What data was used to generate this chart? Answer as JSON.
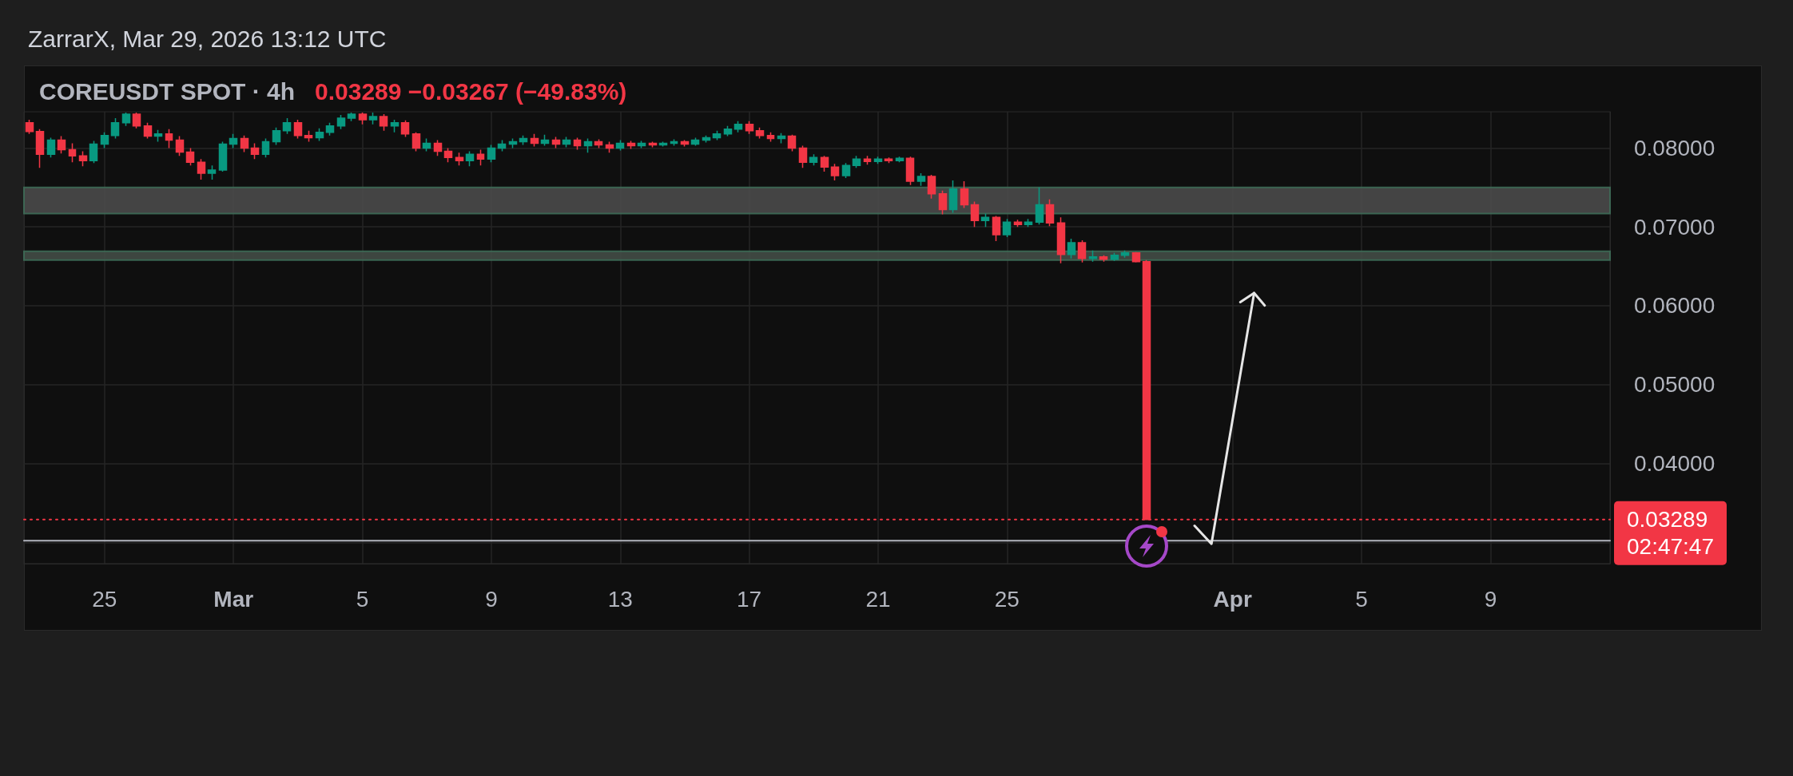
{
  "chart_data": {
    "type": "candlestick",
    "title": "COREUSDT SPOT · 4h",
    "subtitle": "0.03289 −0.03267 (−49.83%)",
    "annotations": [
      "ZarrarX, Mar 29, 2026 13:12 UTC"
    ],
    "x": [
      "2026-02-22T16:00",
      "2026-02-23T00:00",
      "2026-02-23T08:00",
      "2026-02-23T16:00",
      "2026-02-24T00:00",
      "2026-02-24T08:00",
      "2026-02-24T16:00",
      "2026-02-25T00:00",
      "2026-02-25T08:00",
      "2026-02-25T16:00",
      "2026-02-26T00:00",
      "2026-02-26T08:00",
      "2026-02-26T16:00",
      "2026-02-27T00:00",
      "2026-02-27T08:00",
      "2026-02-27T16:00",
      "2026-02-28T00:00",
      "2026-02-28T08:00",
      "2026-02-28T16:00",
      "2026-03-01T00:00",
      "2026-03-01T08:00",
      "2026-03-01T16:00",
      "2026-03-02T00:00",
      "2026-03-02T08:00",
      "2026-03-02T16:00",
      "2026-03-03T00:00",
      "2026-03-03T08:00",
      "2026-03-03T16:00",
      "2026-03-04T00:00",
      "2026-03-04T08:00",
      "2026-03-04T16:00",
      "2026-03-05T00:00",
      "2026-03-05T08:00",
      "2026-03-05T16:00",
      "2026-03-06T00:00",
      "2026-03-06T08:00",
      "2026-03-06T16:00",
      "2026-03-07T00:00",
      "2026-03-07T08:00",
      "2026-03-07T16:00",
      "2026-03-08T00:00",
      "2026-03-08T08:00",
      "2026-03-08T16:00",
      "2026-03-09T00:00",
      "2026-03-09T08:00",
      "2026-03-09T16:00",
      "2026-03-10T00:00",
      "2026-03-10T08:00",
      "2026-03-10T16:00",
      "2026-03-11T00:00",
      "2026-03-11T08:00",
      "2026-03-11T16:00",
      "2026-03-12T00:00",
      "2026-03-12T08:00",
      "2026-03-12T16:00",
      "2026-03-13T00:00",
      "2026-03-13T08:00",
      "2026-03-13T16:00",
      "2026-03-14T00:00",
      "2026-03-14T08:00",
      "2026-03-14T16:00",
      "2026-03-15T00:00",
      "2026-03-15T08:00",
      "2026-03-15T16:00",
      "2026-03-16T00:00",
      "2026-03-16T08:00",
      "2026-03-16T16:00",
      "2026-03-17T00:00",
      "2026-03-17T08:00",
      "2026-03-17T16:00",
      "2026-03-18T00:00",
      "2026-03-18T08:00",
      "2026-03-18T16:00",
      "2026-03-19T00:00",
      "2026-03-19T08:00",
      "2026-03-19T16:00",
      "2026-03-20T00:00",
      "2026-03-20T08:00",
      "2026-03-20T16:00",
      "2026-03-21T00:00",
      "2026-03-21T08:00",
      "2026-03-21T16:00",
      "2026-03-22T00:00",
      "2026-03-22T08:00",
      "2026-03-22T16:00",
      "2026-03-23T00:00",
      "2026-03-23T08:00",
      "2026-03-23T16:00",
      "2026-03-24T00:00",
      "2026-03-24T08:00",
      "2026-03-24T16:00",
      "2026-03-25T00:00",
      "2026-03-25T08:00",
      "2026-03-25T16:00",
      "2026-03-26T00:00",
      "2026-03-26T08:00",
      "2026-03-26T16:00",
      "2026-03-27T00:00",
      "2026-03-27T08:00",
      "2026-03-27T16:00",
      "2026-03-28T00:00",
      "2026-03-28T08:00",
      "2026-03-28T16:00",
      "2026-03-29T00:00",
      "2026-03-29T08:00"
    ],
    "ohlc": [
      [
        0.0832,
        0.0836,
        0.0818,
        0.0821
      ],
      [
        0.0821,
        0.0824,
        0.0775,
        0.0792
      ],
      [
        0.0792,
        0.0813,
        0.0788,
        0.081
      ],
      [
        0.081,
        0.0815,
        0.0793,
        0.0798
      ],
      [
        0.0798,
        0.0806,
        0.0782,
        0.079
      ],
      [
        0.079,
        0.0796,
        0.0777,
        0.0784
      ],
      [
        0.0784,
        0.0809,
        0.0781,
        0.0805
      ],
      [
        0.0805,
        0.082,
        0.08,
        0.0816
      ],
      [
        0.0816,
        0.0838,
        0.0812,
        0.0832
      ],
      [
        0.0832,
        0.0845,
        0.0828,
        0.0843
      ],
      [
        0.0843,
        0.0845,
        0.0825,
        0.0828
      ],
      [
        0.0828,
        0.0832,
        0.0812,
        0.0815
      ],
      [
        0.0815,
        0.0823,
        0.0808,
        0.0818
      ],
      [
        0.0818,
        0.0824,
        0.08,
        0.081
      ],
      [
        0.081,
        0.0815,
        0.079,
        0.0795
      ],
      [
        0.0795,
        0.08,
        0.0778,
        0.0782
      ],
      [
        0.0782,
        0.0786,
        0.076,
        0.0768
      ],
      [
        0.0768,
        0.0778,
        0.076,
        0.0772
      ],
      [
        0.0772,
        0.0808,
        0.077,
        0.0805
      ],
      [
        0.0805,
        0.0818,
        0.08,
        0.0812
      ],
      [
        0.0812,
        0.0816,
        0.0795,
        0.08
      ],
      [
        0.08,
        0.0806,
        0.0786,
        0.0792
      ],
      [
        0.0792,
        0.0812,
        0.0788,
        0.0808
      ],
      [
        0.0808,
        0.0826,
        0.0804,
        0.0822
      ],
      [
        0.0822,
        0.0838,
        0.0818,
        0.0832
      ],
      [
        0.0832,
        0.0836,
        0.0812,
        0.0816
      ],
      [
        0.0816,
        0.0822,
        0.0808,
        0.0813
      ],
      [
        0.0813,
        0.0825,
        0.0809,
        0.082
      ],
      [
        0.082,
        0.0832,
        0.0816,
        0.0828
      ],
      [
        0.0828,
        0.0842,
        0.0824,
        0.0838
      ],
      [
        0.0838,
        0.0845,
        0.0834,
        0.0843
      ],
      [
        0.0843,
        0.0845,
        0.083,
        0.0836
      ],
      [
        0.0836,
        0.0845,
        0.083,
        0.084
      ],
      [
        0.084,
        0.0843,
        0.0822,
        0.0828
      ],
      [
        0.0828,
        0.0836,
        0.082,
        0.0832
      ],
      [
        0.0832,
        0.0835,
        0.0814,
        0.0818
      ],
      [
        0.0818,
        0.082,
        0.0796,
        0.08
      ],
      [
        0.08,
        0.0812,
        0.0796,
        0.0806
      ],
      [
        0.0806,
        0.081,
        0.079,
        0.0796
      ],
      [
        0.0796,
        0.08,
        0.0782,
        0.0788
      ],
      [
        0.0788,
        0.0794,
        0.0778,
        0.0784
      ],
      [
        0.0784,
        0.0796,
        0.0777,
        0.0792
      ],
      [
        0.0792,
        0.0798,
        0.0778,
        0.0786
      ],
      [
        0.0786,
        0.0804,
        0.0782,
        0.08
      ],
      [
        0.08,
        0.081,
        0.0796,
        0.0805
      ],
      [
        0.0805,
        0.0812,
        0.08,
        0.0808
      ],
      [
        0.0808,
        0.0816,
        0.0804,
        0.0812
      ],
      [
        0.0812,
        0.0818,
        0.0802,
        0.0806
      ],
      [
        0.0806,
        0.0817,
        0.0803,
        0.081
      ],
      [
        0.081,
        0.0814,
        0.08,
        0.0805
      ],
      [
        0.0805,
        0.0814,
        0.0801,
        0.081
      ],
      [
        0.081,
        0.0813,
        0.0798,
        0.0803
      ],
      [
        0.0803,
        0.0812,
        0.0794,
        0.0808
      ],
      [
        0.0808,
        0.0811,
        0.08,
        0.0804
      ],
      [
        0.0804,
        0.0808,
        0.0794,
        0.08
      ],
      [
        0.08,
        0.081,
        0.0797,
        0.0806
      ],
      [
        0.0806,
        0.0809,
        0.0799,
        0.0803
      ],
      [
        0.0803,
        0.0809,
        0.08,
        0.0806
      ],
      [
        0.0806,
        0.0808,
        0.0801,
        0.0804
      ],
      [
        0.0804,
        0.0808,
        0.0802,
        0.0806
      ],
      [
        0.0806,
        0.0811,
        0.0803,
        0.0808
      ],
      [
        0.0808,
        0.081,
        0.0802,
        0.0805
      ],
      [
        0.0805,
        0.0813,
        0.0803,
        0.081
      ],
      [
        0.081,
        0.0816,
        0.0807,
        0.0813
      ],
      [
        0.0813,
        0.0822,
        0.081,
        0.0818
      ],
      [
        0.0818,
        0.0828,
        0.0815,
        0.0824
      ],
      [
        0.0824,
        0.0834,
        0.082,
        0.083
      ],
      [
        0.083,
        0.0834,
        0.0818,
        0.0822
      ],
      [
        0.0822,
        0.0826,
        0.0812,
        0.0816
      ],
      [
        0.0816,
        0.082,
        0.0808,
        0.0812
      ],
      [
        0.0812,
        0.0819,
        0.0806,
        0.0815
      ],
      [
        0.0815,
        0.0817,
        0.0796,
        0.08
      ],
      [
        0.08,
        0.0803,
        0.0775,
        0.0782
      ],
      [
        0.0782,
        0.0792,
        0.0778,
        0.0788
      ],
      [
        0.0788,
        0.079,
        0.077,
        0.0776
      ],
      [
        0.0776,
        0.078,
        0.0759,
        0.0765
      ],
      [
        0.0765,
        0.0781,
        0.0762,
        0.0778
      ],
      [
        0.0778,
        0.079,
        0.0775,
        0.0786
      ],
      [
        0.0786,
        0.079,
        0.0779,
        0.0783
      ],
      [
        0.0783,
        0.0789,
        0.078,
        0.0786
      ],
      [
        0.0786,
        0.0788,
        0.0781,
        0.0784
      ],
      [
        0.0784,
        0.0789,
        0.0782,
        0.0787
      ],
      [
        0.0787,
        0.0789,
        0.0753,
        0.0758
      ],
      [
        0.0758,
        0.0768,
        0.0752,
        0.0764
      ],
      [
        0.0764,
        0.0766,
        0.0736,
        0.0742
      ],
      [
        0.0742,
        0.0746,
        0.0716,
        0.0722
      ],
      [
        0.0722,
        0.0759,
        0.0718,
        0.0748
      ],
      [
        0.0748,
        0.0758,
        0.0724,
        0.0728
      ],
      [
        0.0728,
        0.0732,
        0.07,
        0.0708
      ],
      [
        0.0708,
        0.0717,
        0.07,
        0.0712
      ],
      [
        0.0712,
        0.0714,
        0.0682,
        0.069
      ],
      [
        0.069,
        0.071,
        0.0687,
        0.0706
      ],
      [
        0.0706,
        0.0709,
        0.07,
        0.0703
      ],
      [
        0.0703,
        0.071,
        0.07,
        0.0706
      ],
      [
        0.0706,
        0.075,
        0.0703,
        0.0728
      ],
      [
        0.0728,
        0.0735,
        0.0701,
        0.0705
      ],
      [
        0.0705,
        0.0712,
        0.0654,
        0.0665
      ],
      [
        0.0665,
        0.0685,
        0.066,
        0.068
      ],
      [
        0.068,
        0.0683,
        0.0655,
        0.066
      ],
      [
        0.066,
        0.067,
        0.0656,
        0.0662
      ],
      [
        0.0662,
        0.0664,
        0.0656,
        0.0659
      ],
      [
        0.0659,
        0.0667,
        0.0657,
        0.0664
      ],
      [
        0.0664,
        0.067,
        0.0661,
        0.0667
      ],
      [
        0.0667,
        0.0668,
        0.0655,
        0.0656
      ],
      [
        0.0656,
        0.0658,
        0.03289,
        0.03289
      ]
    ],
    "colors": [
      "#f23645",
      "#f23645",
      "#089981",
      "#f23645",
      "#f23645",
      "#f23645",
      "#089981",
      "#089981",
      "#089981",
      "#089981",
      "#f23645",
      "#f23645",
      "#089981",
      "#f23645",
      "#f23645",
      "#f23645",
      "#f23645",
      "#089981",
      "#089981",
      "#089981",
      "#f23645",
      "#f23645",
      "#089981",
      "#089981",
      "#089981",
      "#f23645",
      "#f23645",
      "#089981",
      "#089981",
      "#089981",
      "#089981",
      "#f23645",
      "#089981",
      "#f23645",
      "#089981",
      "#f23645",
      "#f23645",
      "#089981",
      "#f23645",
      "#f23645",
      "#f23645",
      "#089981",
      "#f23645",
      "#089981",
      "#089981",
      "#089981",
      "#089981",
      "#f23645",
      "#089981",
      "#f23645",
      "#089981",
      "#f23645",
      "#089981",
      "#f23645",
      "#f23645",
      "#089981",
      "#f23645",
      "#089981",
      "#f23645",
      "#089981",
      "#089981",
      "#f23645",
      "#089981",
      "#089981",
      "#089981",
      "#089981",
      "#089981",
      "#f23645",
      "#f23645",
      "#f23645",
      "#089981",
      "#f23645",
      "#f23645",
      "#089981",
      "#f23645",
      "#f23645",
      "#089981",
      "#089981",
      "#f23645",
      "#089981",
      "#f23645",
      "#089981",
      "#f23645",
      "#089981",
      "#f23645",
      "#f23645",
      "#089981",
      "#f23645",
      "#f23645",
      "#089981",
      "#f23645",
      "#089981",
      "#f23645",
      "#089981",
      "#089981",
      "#f23645",
      "#f23645",
      "#089981",
      "#f23645",
      "#089981",
      "#f23645",
      "#089981",
      "#089981",
      "#f23645",
      "#f23645"
    ],
    "xlim": [
      "2026-02-22T12:00",
      "2026-04-12T17:00"
    ],
    "xticks": [
      {
        "value": "2026-02-25",
        "label": "25"
      },
      {
        "value": "2026-03-01",
        "label": "Mar"
      },
      {
        "value": "2026-03-05",
        "label": "5"
      },
      {
        "value": "2026-03-09",
        "label": "9"
      },
      {
        "value": "2026-03-13",
        "label": "13"
      },
      {
        "value": "2026-03-17",
        "label": "17"
      },
      {
        "value": "2026-03-21",
        "label": "21"
      },
      {
        "value": "2026-03-25",
        "label": "25"
      },
      {
        "value": "2026-04-01",
        "label": "Apr"
      },
      {
        "value": "2026-04-05",
        "label": "5"
      },
      {
        "value": "2026-04-09",
        "label": "9"
      }
    ],
    "ylim": [
      0.0273,
      0.0846
    ],
    "yticks": [
      {
        "value": 0.03,
        "label": null
      },
      {
        "value": 0.04,
        "label": "0.04000"
      },
      {
        "value": 0.05,
        "label": "0.05000"
      },
      {
        "value": 0.06,
        "label": "0.06000"
      },
      {
        "value": 0.07,
        "label": "0.07000"
      },
      {
        "value": 0.08,
        "label": "0.08000"
      }
    ],
    "grid": true,
    "bands": [
      {
        "axis": "y",
        "from": 0.0717,
        "to": 0.075,
        "color": "#4a4a4a"
      },
      {
        "axis": "y",
        "from": 0.0658,
        "to": 0.0669,
        "color": "#434c46"
      }
    ],
    "ref_lines": [
      {
        "axis": "y",
        "value": 0.03289,
        "label": "0.03289\n02:47:47",
        "color": "#f23645",
        "line_style": "dotted"
      },
      {
        "axis": "y",
        "value": 0.0302,
        "color": "#b2b5be",
        "line_style": "solid"
      }
    ]
  }
}
